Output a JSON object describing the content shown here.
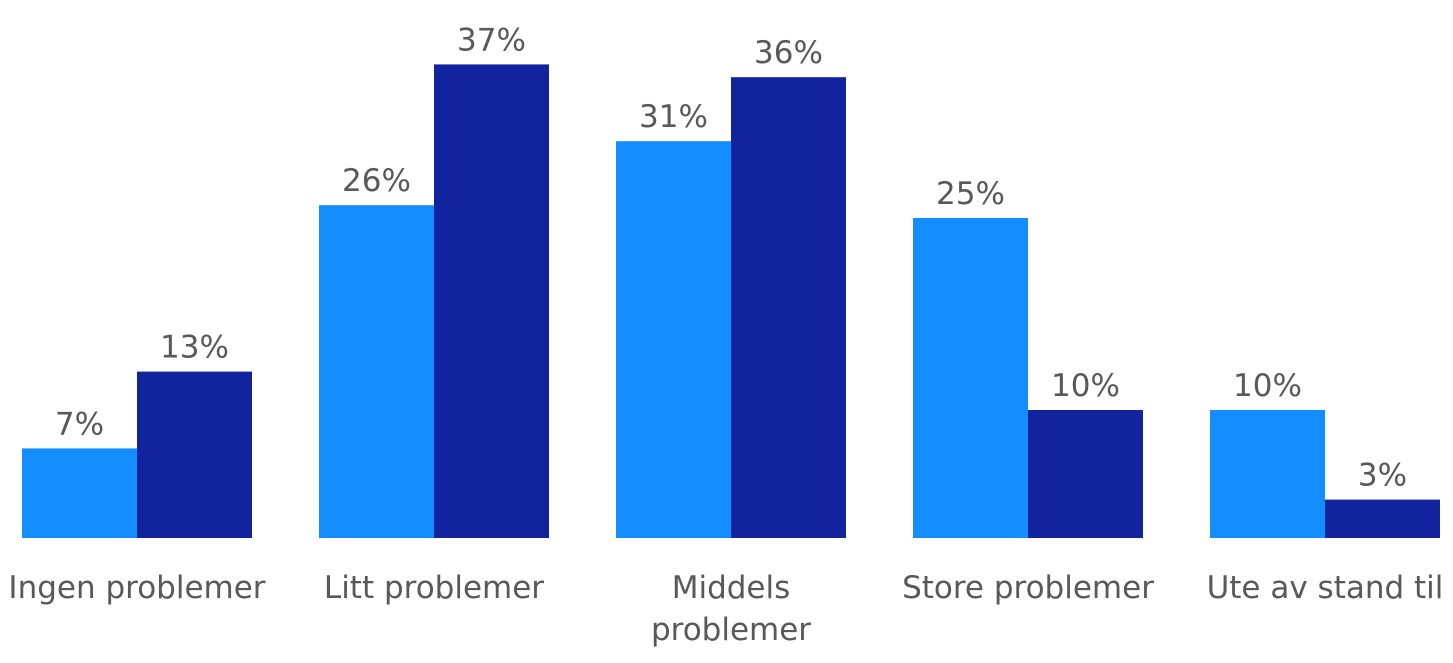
{
  "chart_data": {
    "type": "bar",
    "title": "",
    "xlabel": "",
    "ylabel": "",
    "categories": [
      [
        "Ingen problemer"
      ],
      [
        "Litt problemer"
      ],
      [
        "Middels",
        "problemer"
      ],
      [
        "Store problemer"
      ],
      [
        "Ute av stand til"
      ]
    ],
    "series": [
      {
        "values": [
          7,
          26,
          31,
          25,
          10
        ],
        "color": "#148EFF"
      },
      {
        "values": [
          13,
          37,
          36,
          10,
          3
        ],
        "color": "#12239E"
      }
    ],
    "value_labels": [
      [
        "7%",
        "26%",
        "31%",
        "25%",
        "10%"
      ],
      [
        "13%",
        "37%",
        "36%",
        "10%",
        "3%"
      ]
    ],
    "ylim": [
      0,
      40
    ],
    "grid": false,
    "legend": "none"
  }
}
